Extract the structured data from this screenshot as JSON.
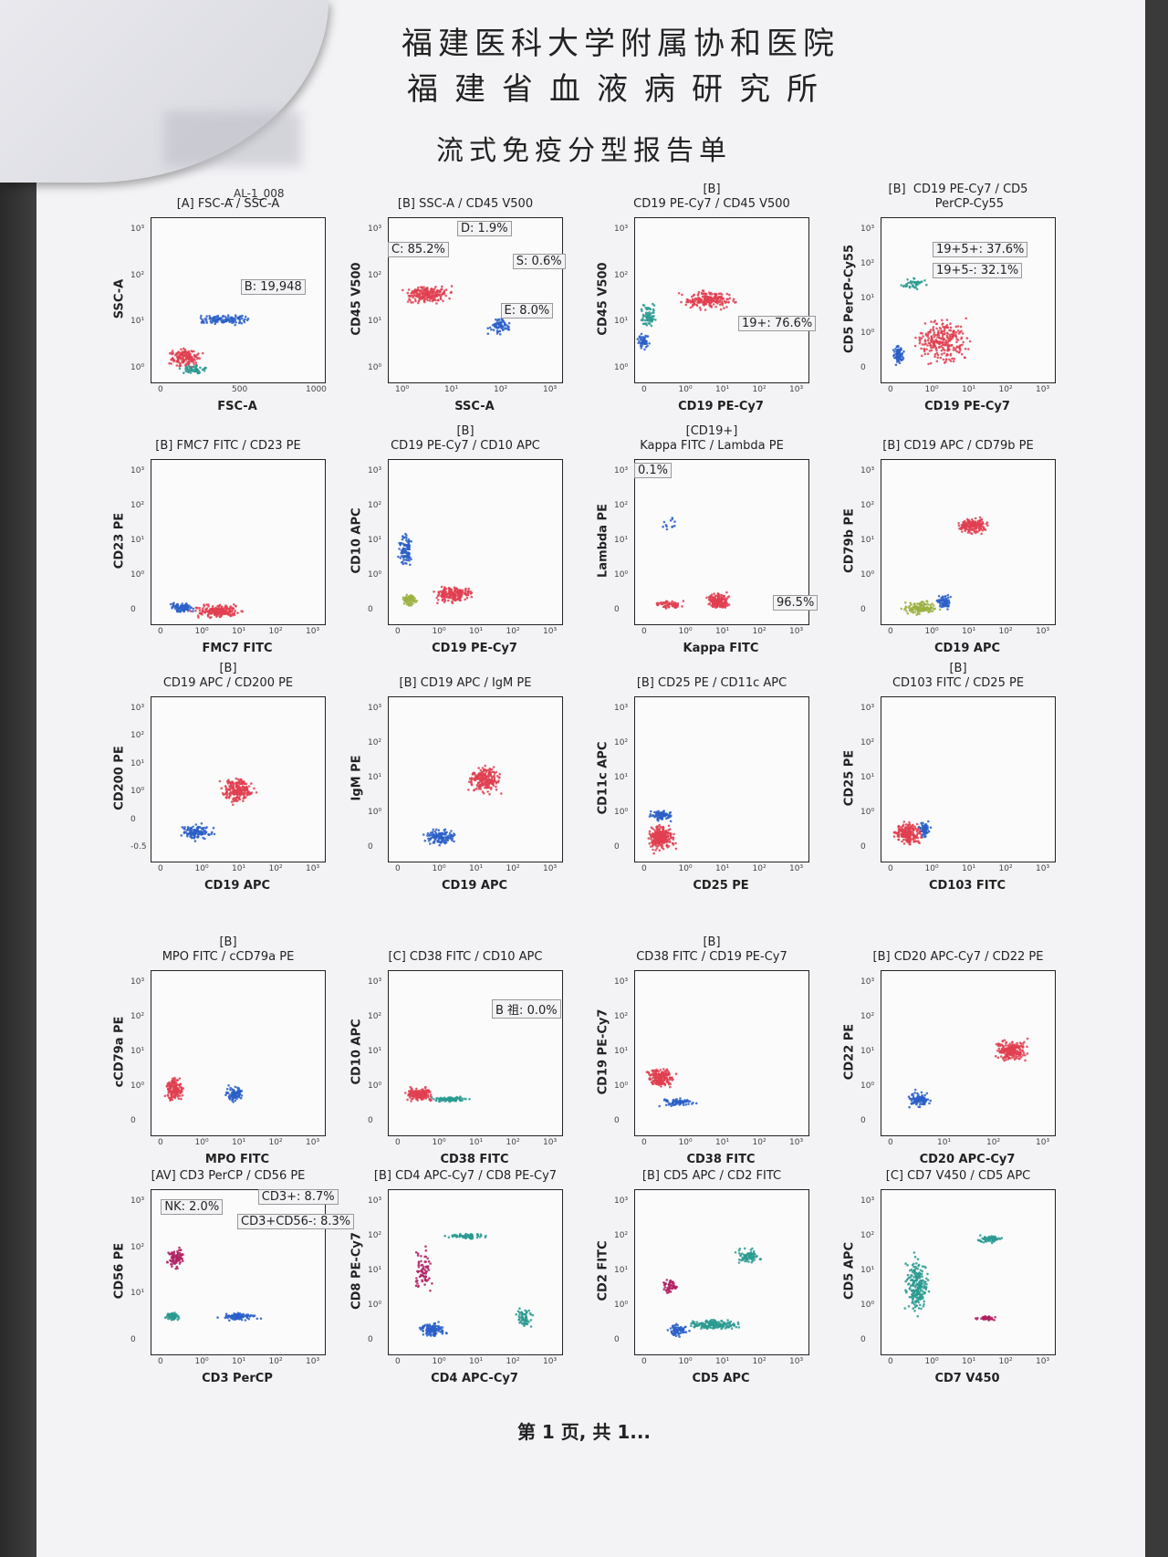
{
  "header": {
    "hospital_line1": "福建医科大学附属协和医院",
    "hospital_line2": "福建省血液病研究所",
    "report_title": "流式免疫分型报告单",
    "sample_id": "_AL-1_008"
  },
  "footer": {
    "page": "第 1 页, 共 1..."
  },
  "panels": [
    {
      "title": "[A] FSC-A / SSC-A",
      "x": "FSC-A",
      "y": "SSC-A",
      "xt": [
        "0",
        "500",
        "1000"
      ],
      "yt": [
        "10⁰",
        "10¹",
        "10²",
        "10³"
      ],
      "gates": [
        "B: 19,948"
      ]
    },
    {
      "title": "[B] SSC-A / CD45 V500",
      "x": "SSC-A",
      "y": "CD45 V500",
      "xt": [
        "10⁰",
        "10¹",
        "10²",
        "10³"
      ],
      "yt": [
        "10⁰",
        "10¹",
        "10²",
        "10³"
      ],
      "gates": [
        "D: 1.9%",
        "C: 85.2%",
        "S: 0.6%",
        "E: 8.0%"
      ]
    },
    {
      "title": "[B]\nCD19 PE-Cy7 / CD45 V500",
      "x": "CD19 PE-Cy7",
      "y": "CD45 V500",
      "xt": [
        "0",
        "10⁰",
        "10¹",
        "10²",
        "10³"
      ],
      "yt": [
        "10⁰",
        "10¹",
        "10²",
        "10³"
      ],
      "gates": [
        "19+: 76.6%"
      ]
    },
    {
      "title": "[B]  CD19 PE-Cy7 / CD5\n      PerCP-Cy55",
      "x": "CD19 PE-Cy7",
      "y": "CD5 PerCP-Cy55",
      "xt": [
        "0",
        "10⁰",
        "10¹",
        "10²",
        "10³"
      ],
      "yt": [
        "0",
        "10⁰",
        "10¹",
        "10²",
        "10³"
      ],
      "gates": [
        "19+5+: 37.6%",
        "19+5-: 32.1%"
      ]
    },
    {
      "title": "[B] FMC7 FITC / CD23 PE",
      "x": "FMC7 FITC",
      "y": "CD23 PE",
      "xt": [
        "0",
        "10⁰",
        "10¹",
        "10²",
        "10³"
      ],
      "yt": [
        "0",
        "10⁰",
        "10¹",
        "10²",
        "10³"
      ],
      "gates": []
    },
    {
      "title": "[B]\nCD19 PE-Cy7 / CD10 APC",
      "x": "CD19 PE-Cy7",
      "y": "CD10 APC",
      "xt": [
        "0",
        "10⁰",
        "10¹",
        "10²",
        "10³"
      ],
      "yt": [
        "0",
        "10⁰",
        "10¹",
        "10²",
        "10³"
      ],
      "gates": []
    },
    {
      "title": "[CD19+]\nKappa FITC / Lambda PE",
      "x": "Kappa FITC",
      "y": "Lambda PE",
      "xt": [
        "0",
        "10⁰",
        "10¹",
        "10²",
        "10³"
      ],
      "yt": [
        "0",
        "10⁰",
        "10¹",
        "10²",
        "10³"
      ],
      "gates": [
        "0.1%",
        "96.5%"
      ]
    },
    {
      "title": "[B] CD19 APC / CD79b PE",
      "x": "CD19 APC",
      "y": "CD79b PE",
      "xt": [
        "0",
        "10⁰",
        "10¹",
        "10²",
        "10³"
      ],
      "yt": [
        "0",
        "10⁰",
        "10¹",
        "10²",
        "10³"
      ],
      "gates": []
    },
    {
      "title": "[B]\nCD19 APC / CD200 PE",
      "x": "CD19 APC",
      "y": "CD200 PE",
      "xt": [
        "0",
        "10⁰",
        "10¹",
        "10²",
        "10³"
      ],
      "yt": [
        "-0.5",
        "0",
        "10⁰",
        "10¹",
        "10²",
        "10³"
      ],
      "gates": []
    },
    {
      "title": "[B] CD19 APC / IgM PE",
      "x": "CD19 APC",
      "y": "IgM PE",
      "xt": [
        "0",
        "10⁰",
        "10¹",
        "10²",
        "10³"
      ],
      "yt": [
        "0",
        "10⁰",
        "10¹",
        "10²",
        "10³"
      ],
      "gates": []
    },
    {
      "title": "[B] CD25 PE / CD11c APC",
      "x": "CD25 PE",
      "y": "CD11c APC",
      "xt": [
        "0",
        "10⁰",
        "10¹",
        "10²",
        "10³"
      ],
      "yt": [
        "0",
        "10⁰",
        "10¹",
        "10²",
        "10³"
      ],
      "gates": []
    },
    {
      "title": "[B]\nCD103 FITC / CD25 PE",
      "x": "CD103 FITC",
      "y": "CD25 PE",
      "xt": [
        "0",
        "10⁰",
        "10¹",
        "10²",
        "10³"
      ],
      "yt": [
        "0",
        "10⁰",
        "10¹",
        "10²",
        "10³"
      ],
      "gates": []
    },
    {
      "title": "[B]\nMPO FITC / cCD79a PE",
      "x": "MPO FITC",
      "y": "cCD79a PE",
      "xt": [
        "0",
        "10⁰",
        "10¹",
        "10²",
        "10³"
      ],
      "yt": [
        "0",
        "10⁰",
        "10¹",
        "10²",
        "10³"
      ],
      "gates": []
    },
    {
      "title": "[C] CD38 FITC / CD10 APC",
      "x": "CD38 FITC",
      "y": "CD10 APC",
      "xt": [
        "0",
        "10⁰",
        "10¹",
        "10²",
        "10³"
      ],
      "yt": [
        "0",
        "10⁰",
        "10¹",
        "10²",
        "10³"
      ],
      "gates": [
        "B 祖: 0.0%"
      ]
    },
    {
      "title": "[B]\nCD38 FITC / CD19 PE-Cy7",
      "x": "CD38 FITC",
      "y": "CD19 PE-Cy7",
      "xt": [
        "0",
        "10⁰",
        "10¹",
        "10²",
        "10³"
      ],
      "yt": [
        "0",
        "10⁰",
        "10¹",
        "10²",
        "10³"
      ],
      "gates": []
    },
    {
      "title": "[B] CD20 APC-Cy7 / CD22 PE",
      "x": "CD20 APC-Cy7",
      "y": "CD22 PE",
      "xt": [
        "0",
        "10¹",
        "10²",
        "10³"
      ],
      "yt": [
        "0",
        "10⁰",
        "10¹",
        "10²",
        "10³"
      ],
      "gates": []
    },
    {
      "title": "[AV] CD3 PerCP / CD56 PE",
      "x": "CD3 PerCP",
      "y": "CD56 PE",
      "xt": [
        "0",
        "10⁰",
        "10¹",
        "10²",
        "10³"
      ],
      "yt": [
        "0",
        "10¹",
        "10²",
        "10³"
      ],
      "gates": [
        "NK: 2.0%",
        "CD3+: 8.7%",
        "CD3+CD56-: 8.3%"
      ]
    },
    {
      "title": "[B] CD4 APC-Cy7 / CD8 PE-Cy7",
      "x": "CD4 APC-Cy7",
      "y": "CD8 PE-Cy7",
      "xt": [
        "0",
        "10⁰",
        "10¹",
        "10²",
        "10³"
      ],
      "yt": [
        "0",
        "10⁰",
        "10¹",
        "10²",
        "10³"
      ],
      "gates": []
    },
    {
      "title": "[B] CD5 APC / CD2 FITC",
      "x": "CD5 APC",
      "y": "CD2 FITC",
      "xt": [
        "0",
        "10⁰",
        "10¹",
        "10²",
        "10³"
      ],
      "yt": [
        "0",
        "10⁰",
        "10¹",
        "10²",
        "10³"
      ],
      "gates": []
    },
    {
      "title": "[C] CD7 V450 / CD5 APC",
      "x": "CD7 V450",
      "y": "CD5 APC",
      "xt": [
        "0",
        "10⁰",
        "10¹",
        "10²",
        "10³"
      ],
      "yt": [
        "0",
        "10⁰",
        "10¹",
        "10²",
        "10³"
      ],
      "gates": []
    }
  ],
  "colors": {
    "red": "#e04050",
    "blue": "#2a5fc8",
    "teal": "#2a9a90",
    "green": "#9ab040",
    "magenta": "#b02060"
  }
}
